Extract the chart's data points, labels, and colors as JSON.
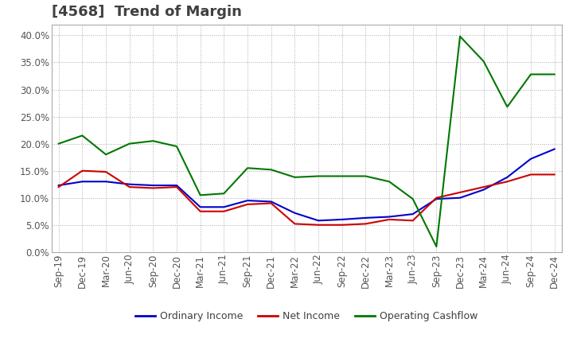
{
  "title": "[4568]  Trend of Margin",
  "title_color": "#404040",
  "background_color": "#ffffff",
  "plot_background": "#ffffff",
  "grid_color": "#aaaaaa",
  "ylim": [
    0.0,
    0.42
  ],
  "yticks": [
    0.0,
    0.05,
    0.1,
    0.15,
    0.2,
    0.25,
    0.3,
    0.35,
    0.4
  ],
  "x_labels": [
    "Sep-19",
    "Dec-19",
    "Mar-20",
    "Jun-20",
    "Sep-20",
    "Dec-20",
    "Mar-21",
    "Jun-21",
    "Sep-21",
    "Dec-21",
    "Mar-22",
    "Jun-22",
    "Sep-22",
    "Dec-22",
    "Mar-23",
    "Jun-23",
    "Sep-23",
    "Dec-23",
    "Mar-24",
    "Jun-24",
    "Sep-24",
    "Dec-24"
  ],
  "ordinary_income": [
    0.123,
    0.13,
    0.13,
    0.125,
    0.123,
    0.123,
    0.083,
    0.083,
    0.095,
    0.093,
    0.072,
    0.058,
    0.06,
    0.063,
    0.065,
    0.07,
    0.098,
    0.1,
    0.115,
    0.138,
    0.172,
    0.19
  ],
  "net_income": [
    0.12,
    0.15,
    0.148,
    0.12,
    0.118,
    0.12,
    0.075,
    0.075,
    0.088,
    0.09,
    0.052,
    0.05,
    0.05,
    0.052,
    0.06,
    0.058,
    0.1,
    0.11,
    0.12,
    0.13,
    0.143,
    0.143
  ],
  "operating_cashflow": [
    0.2,
    0.215,
    0.18,
    0.2,
    0.205,
    0.195,
    0.105,
    0.108,
    0.155,
    0.152,
    0.138,
    0.14,
    0.14,
    0.14,
    0.13,
    0.098,
    0.01,
    0.398,
    0.352,
    0.268,
    0.328,
    0.328
  ],
  "line_colors": {
    "ordinary_income": "#0000cc",
    "net_income": "#cc0000",
    "operating_cashflow": "#007700"
  },
  "legend_labels": {
    "ordinary_income": "Ordinary Income",
    "net_income": "Net Income",
    "operating_cashflow": "Operating Cashflow"
  },
  "legend_text_color": "#404040",
  "axis_text_color": "#555555",
  "title_fontsize": 13,
  "tick_fontsize": 8.5,
  "ytick_fontsize": 8.5
}
